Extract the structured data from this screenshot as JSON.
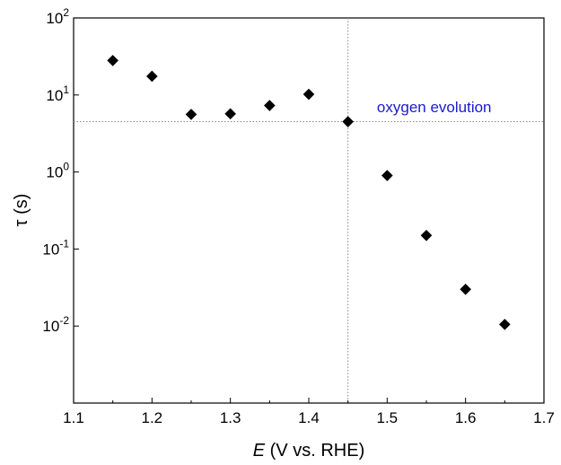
{
  "chart_data": {
    "type": "scatter",
    "title": "",
    "xlabel_symbol": "E",
    "xlabel_rest": " (V vs. RHE)",
    "ylabel": "τ (s)",
    "xlim": [
      1.1,
      1.7
    ],
    "ylim": [
      0.001,
      100
    ],
    "yscale": "log",
    "x_ticks": [
      "1.1",
      "1.2",
      "1.3",
      "1.4",
      "1.5",
      "1.6",
      "1.7"
    ],
    "y_ticks": [
      {
        "base": "10",
        "exp": "2"
      },
      {
        "base": "10",
        "exp": "1"
      },
      {
        "base": "10",
        "exp": "0"
      },
      {
        "base": "10",
        "exp": "-1"
      },
      {
        "base": "10",
        "exp": "-2"
      }
    ],
    "grid": false,
    "marker": "diamond",
    "marker_color": "#000000",
    "x": [
      1.15,
      1.2,
      1.25,
      1.3,
      1.35,
      1.4,
      1.45,
      1.5,
      1.55,
      1.6,
      1.65
    ],
    "y": [
      28,
      17.5,
      5.6,
      5.7,
      7.3,
      10.2,
      4.5,
      0.9,
      0.15,
      0.03,
      0.0105
    ],
    "reference_lines": {
      "vertical_x": 1.45,
      "horizontal_y": 4.5,
      "color": "#888888"
    },
    "annotation": {
      "text": "oxygen evolution",
      "x": 1.56,
      "y": 6,
      "color": "#1a1acc"
    }
  }
}
